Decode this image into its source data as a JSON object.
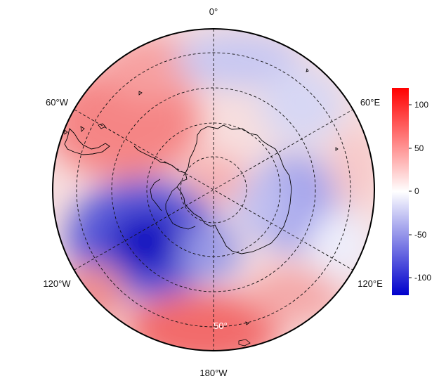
{
  "map": {
    "projection": "south-polar-stereographic",
    "colormap": {
      "low": "#0000cc",
      "mid": "#ffffff",
      "high": "#ff0000"
    },
    "longitude_labels": [
      "0°",
      "60°E",
      "120°E",
      "180°W",
      "120°W",
      "60°W"
    ],
    "latitude_label": "50°",
    "colorbar": {
      "range": [
        -120,
        120
      ],
      "ticks": [
        "100",
        "50",
        "0",
        "-50",
        "-100"
      ]
    }
  }
}
